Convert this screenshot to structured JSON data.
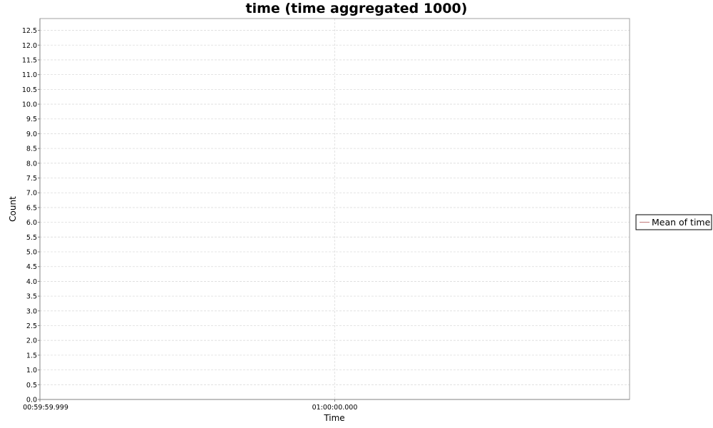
{
  "chart_data": {
    "type": "line",
    "title": "time (time aggregated 1000)",
    "xlabel": "Time",
    "ylabel": "Count",
    "x_tick_labels": [
      "00:59:59.999",
      "01:00:00.000"
    ],
    "y_ticks": [
      "0.0",
      "0.5",
      "1.0",
      "1.5",
      "2.0",
      "2.5",
      "3.0",
      "3.5",
      "4.0",
      "4.5",
      "5.0",
      "5.5",
      "6.0",
      "6.5",
      "7.0",
      "7.5",
      "8.0",
      "8.5",
      "9.0",
      "9.5",
      "10.0",
      "10.5",
      "11.0",
      "11.5",
      "12.0",
      "12.5"
    ],
    "ylim": [
      0,
      12.9
    ],
    "grid": true,
    "legend_position": "right",
    "series": [
      {
        "name": "Mean of time",
        "color": "#c07878",
        "values": []
      }
    ]
  }
}
